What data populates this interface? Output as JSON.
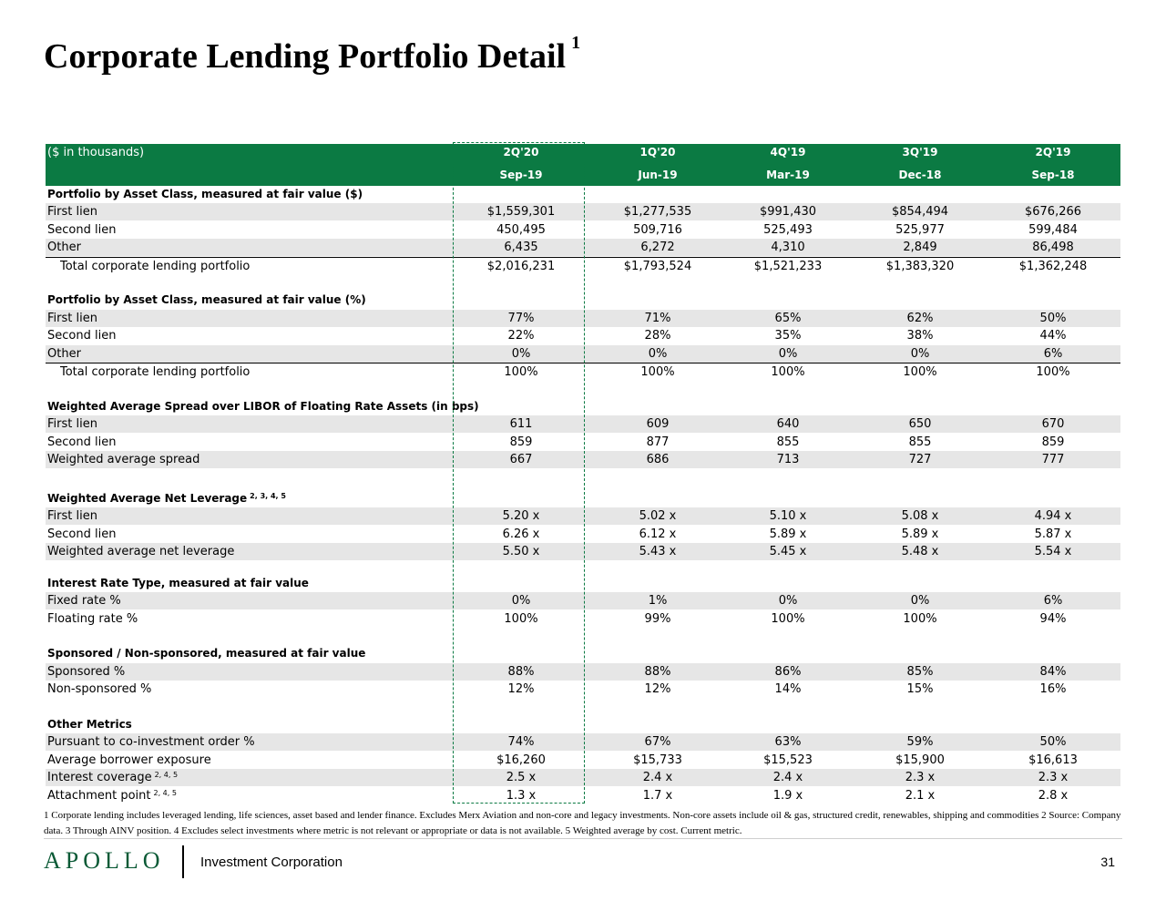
{
  "title": "Corporate Lending Portfolio Detail",
  "title_footnote": "1",
  "header": {
    "label": "($ in thousands)",
    "quarters": [
      "2Q'20",
      "1Q'20",
      "4Q'19",
      "3Q'19",
      "2Q'19"
    ],
    "dates": [
      "Sep-19",
      "Jun-19",
      "Mar-19",
      "Dec-18",
      "Sep-18"
    ]
  },
  "sections": [
    {
      "heading": "Portfolio by Asset Class, measured at fair value ($)",
      "rows": [
        {
          "label": "First lien",
          "values": [
            "$1,559,301",
            "$1,277,535",
            "$991,430",
            "$854,494",
            "$676,266"
          ]
        },
        {
          "label": "Second lien",
          "values": [
            "450,495",
            "509,716",
            "525,493",
            "525,977",
            "599,484"
          ]
        },
        {
          "label": "Other",
          "values": [
            "6,435",
            "6,272",
            "4,310",
            "2,849",
            "86,498"
          ]
        },
        {
          "label": "Total corporate lending portfolio",
          "values": [
            "$2,016,231",
            "$1,793,524",
            "$1,521,233",
            "$1,383,320",
            "$1,362,248"
          ]
        }
      ]
    },
    {
      "heading": "Portfolio by Asset Class, measured at fair value (%)",
      "rows": [
        {
          "label": "First lien",
          "values": [
            "77%",
            "71%",
            "65%",
            "62%",
            "50%"
          ]
        },
        {
          "label": "Second lien",
          "values": [
            "22%",
            "28%",
            "35%",
            "38%",
            "44%"
          ]
        },
        {
          "label": "Other",
          "values": [
            "0%",
            "0%",
            "0%",
            "0%",
            "6%"
          ]
        },
        {
          "label": "Total corporate lending portfolio",
          "values": [
            "100%",
            "100%",
            "100%",
            "100%",
            "100%"
          ]
        }
      ]
    },
    {
      "heading": "Weighted Average Spread over LIBOR of Floating Rate Assets (in bps)",
      "rows": [
        {
          "label": "First lien",
          "values": [
            "611",
            "609",
            "640",
            "650",
            "670"
          ]
        },
        {
          "label": "Second lien",
          "values": [
            "859",
            "877",
            "855",
            "855",
            "859"
          ]
        },
        {
          "label": "Weighted average spread",
          "values": [
            "667",
            "686",
            "713",
            "727",
            "777"
          ]
        }
      ]
    },
    {
      "heading": "Weighted Average Net Leverage",
      "heading_sup": "2, 3, 4, 5",
      "rows": [
        {
          "label": "First lien",
          "values": [
            "5.20 x",
            "5.02 x",
            "5.10 x",
            "5.08 x",
            "4.94 x"
          ]
        },
        {
          "label": "Second lien",
          "values": [
            "6.26 x",
            "6.12 x",
            "5.89 x",
            "5.89 x",
            "5.87 x"
          ]
        },
        {
          "label": "Weighted average net leverage",
          "values": [
            "5.50 x",
            "5.43 x",
            "5.45 x",
            "5.48 x",
            "5.54 x"
          ]
        }
      ]
    },
    {
      "heading": "Interest Rate Type, measured at fair value",
      "rows": [
        {
          "label": "Fixed rate %",
          "values": [
            "0%",
            "1%",
            "0%",
            "0%",
            "6%"
          ]
        },
        {
          "label": "Floating rate %",
          "values": [
            "100%",
            "99%",
            "100%",
            "100%",
            "94%"
          ]
        }
      ]
    },
    {
      "heading": "Sponsored / Non-sponsored, measured at fair value",
      "rows": [
        {
          "label": "Sponsored %",
          "values": [
            "88%",
            "88%",
            "86%",
            "85%",
            "84%"
          ]
        },
        {
          "label": "Non-sponsored %",
          "values": [
            "12%",
            "12%",
            "14%",
            "15%",
            "16%"
          ]
        }
      ]
    },
    {
      "heading": "Other Metrics",
      "rows": [
        {
          "label": "Pursuant to co-investment order %",
          "values": [
            "74%",
            "67%",
            "63%",
            "59%",
            "50%"
          ]
        },
        {
          "label": "Average borrower exposure",
          "values": [
            "$16,260",
            "$15,733",
            "$15,523",
            "$15,900",
            "$16,613"
          ]
        },
        {
          "label": "Interest coverage",
          "sup": "2, 4, 5",
          "values": [
            "2.5 x",
            "2.4 x",
            "2.4 x",
            "2.3 x",
            "2.3 x"
          ]
        },
        {
          "label": "Attachment point",
          "sup": "2, 4, 5",
          "values": [
            "1.3 x",
            "1.7 x",
            "1.9 x",
            "2.1 x",
            "2.8 x"
          ]
        }
      ]
    }
  ],
  "footnote": "1 Corporate lending includes leveraged lending, life sciences, asset based and lender finance. Excludes Merx Aviation and non-core and legacy investments.  Non-core assets include oil & gas, structured credit, renewables, shipping and commodities 2 Source:  Company data.  3 Through AINV position. 4 Excludes select investments where metric is not relevant or appropriate or data is not available. 5 Weighted average by cost. Current metric.",
  "footer": {
    "logo_text": "APOLLO",
    "company": "Investment Corporation",
    "page_number": "31"
  },
  "colors": {
    "header_green": "#0b7a43",
    "row_shade": "#e6e6e6",
    "logo_green": "#0b5a36"
  }
}
